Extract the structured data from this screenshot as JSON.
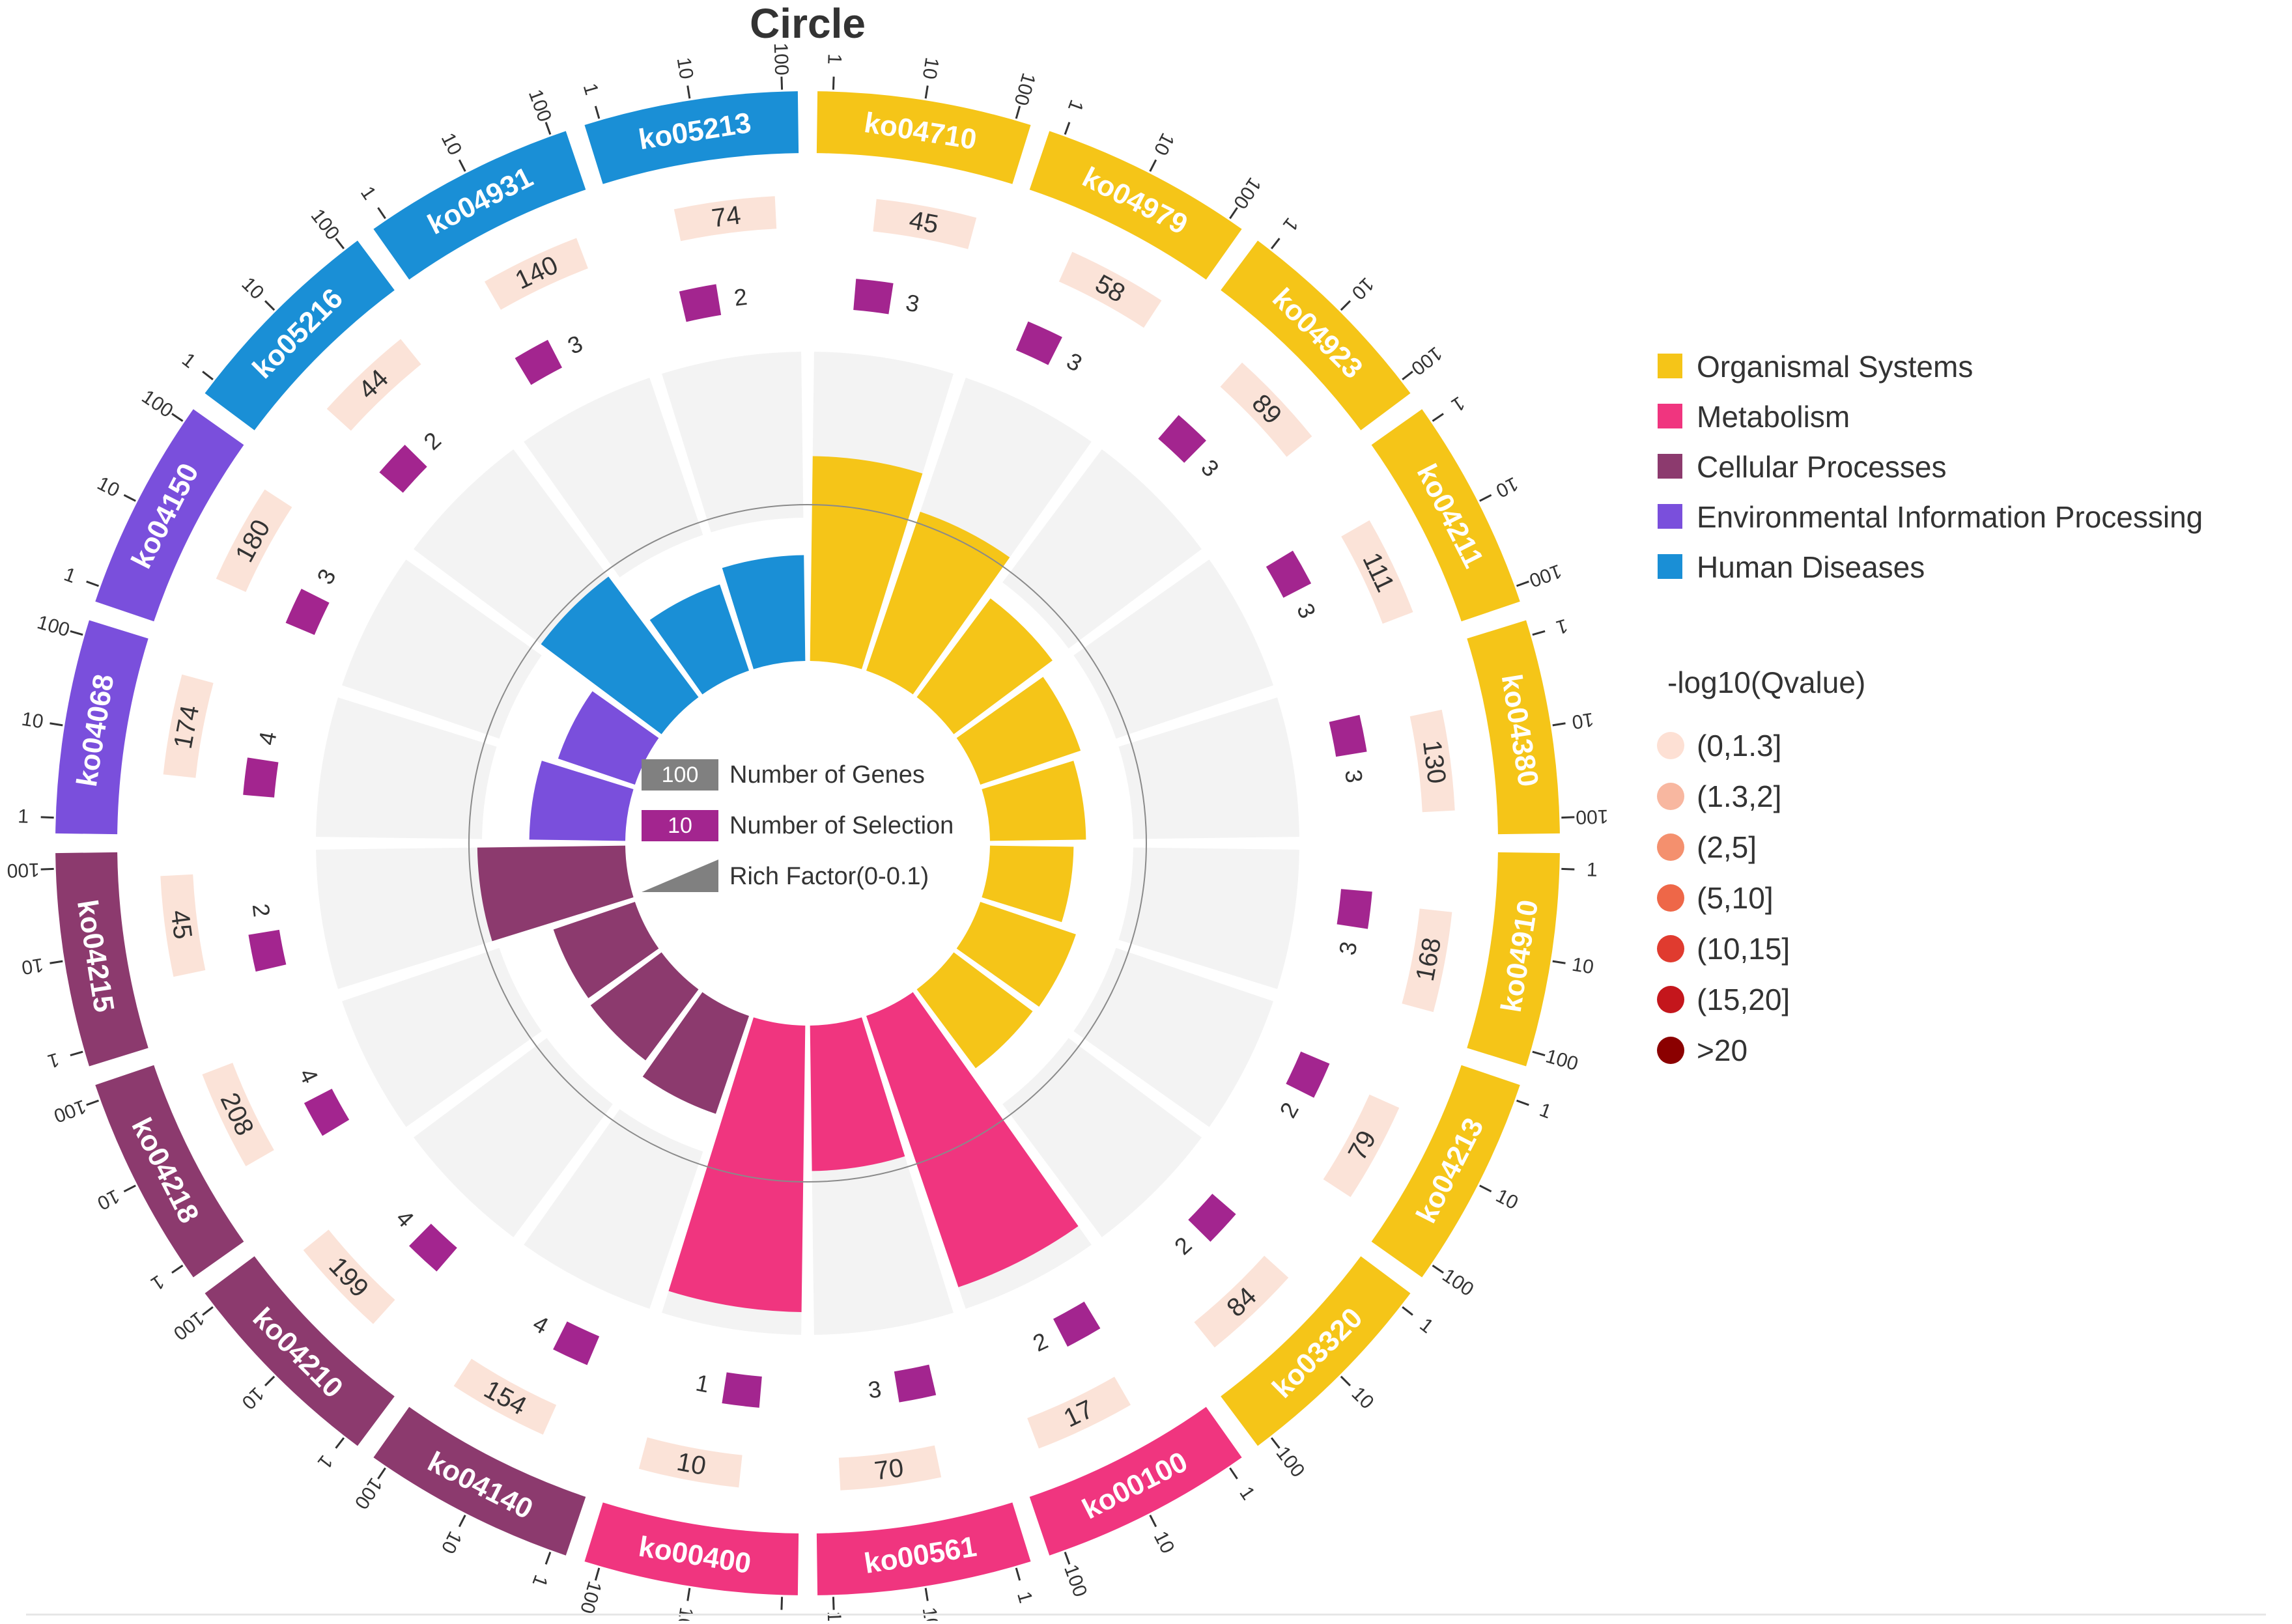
{
  "chart_data": {
    "type": "circos",
    "title": "Circle",
    "categories": [
      {
        "name": "Organismal Systems",
        "color": "#f5c518"
      },
      {
        "name": "Metabolism",
        "color": "#f0357f"
      },
      {
        "name": "Cellular Processes",
        "color": "#8c3a6e"
      },
      {
        "name": "Environmental Information Processing",
        "color": "#7a4fdc"
      },
      {
        "name": "Human Diseases",
        "color": "#1a8fd6"
      }
    ],
    "pathways": [
      {
        "id": "ko04710",
        "category": "Organismal Systems",
        "genes": "45",
        "selection": "3",
        "rich_factor": 0.067
      },
      {
        "id": "ko04979",
        "category": "Organismal Systems",
        "genes": "58",
        "selection": "3",
        "rich_factor": 0.052
      },
      {
        "id": "ko04923",
        "category": "Organismal Systems",
        "genes": "89",
        "selection": "3",
        "rich_factor": 0.034
      },
      {
        "id": "ko04211",
        "category": "Organismal Systems",
        "genes": "111",
        "selection": "3",
        "rich_factor": 0.027
      },
      {
        "id": "ko04380",
        "category": "Organismal Systems",
        "genes": "130",
        "selection": "3",
        "rich_factor": 0.023
      },
      {
        "id": "ko04910",
        "category": "Organismal Systems",
        "genes": "168",
        "selection": "3",
        "rich_factor": 0.018
      },
      {
        "id": "ko04213",
        "category": "Organismal Systems",
        "genes": "79",
        "selection": "2",
        "rich_factor": 0.025
      },
      {
        "id": "ko03320",
        "category": "Organismal Systems",
        "genes": "84",
        "selection": "2",
        "rich_factor": 0.024
      },
      {
        "id": "ko00100",
        "category": "Metabolism",
        "genes": "17",
        "selection": "2",
        "rich_factor": 0.1
      },
      {
        "id": "ko00561",
        "category": "Metabolism",
        "genes": "70",
        "selection": "3",
        "rich_factor": 0.043
      },
      {
        "id": "ko00400",
        "category": "Metabolism",
        "genes": "10",
        "selection": "1",
        "rich_factor": 0.1
      },
      {
        "id": "ko04140",
        "category": "Cellular Processes",
        "genes": "154",
        "selection": "4",
        "rich_factor": 0.026
      },
      {
        "id": "ko04210",
        "category": "Cellular Processes",
        "genes": "199",
        "selection": "4",
        "rich_factor": 0.02
      },
      {
        "id": "ko04218",
        "category": "Cellular Processes",
        "genes": "208",
        "selection": "4",
        "rich_factor": 0.019
      },
      {
        "id": "ko04215",
        "category": "Cellular Processes",
        "genes": "45",
        "selection": "2",
        "rich_factor": 0.044
      },
      {
        "id": "ko04068",
        "category": "Environmental Information Processing",
        "genes": "174",
        "selection": "4",
        "rich_factor": 0.023
      },
      {
        "id": "ko04150",
        "category": "Environmental Information Processing",
        "genes": "180",
        "selection": "3",
        "rich_factor": 0.017
      },
      {
        "id": "ko05216",
        "category": "Human Diseases",
        "genes": "44",
        "selection": "2",
        "rich_factor": 0.045
      },
      {
        "id": "ko04931",
        "category": "Human Diseases",
        "genes": "140",
        "selection": "3",
        "rich_factor": 0.021
      },
      {
        "id": "ko05213",
        "category": "Human Diseases",
        "genes": "74",
        "selection": "2",
        "rich_factor": 0.027
      }
    ],
    "outer_scale_ticks": [
      "1",
      "10",
      "100"
    ],
    "center_legend": [
      {
        "sample": "100",
        "label": "Number of Genes",
        "color": "#808080"
      },
      {
        "sample": "10",
        "label": "Number of Selection",
        "color": "#a3258f"
      },
      {
        "sample": "",
        "label": "Rich Factor(0-0.1)",
        "color": "#808080"
      }
    ],
    "rich_factor_range": [
      0,
      0.1
    ],
    "qvalue_legend": {
      "title": "-log10(Qvalue)",
      "items": [
        {
          "label": "(0,1.3]",
          "color": "#fde0d4"
        },
        {
          "label": "(1.3,2]",
          "color": "#f8b7a0"
        },
        {
          "label": "(2,5]",
          "color": "#f4906e"
        },
        {
          "label": "(5,10]",
          "color": "#ee6748"
        },
        {
          "label": "(10,15]",
          "color": "#e03b2f"
        },
        {
          "label": "(15,20]",
          "color": "#c4161c"
        },
        {
          "label": ">20",
          "color": "#8b0000"
        }
      ]
    },
    "selection_color": "#a3258f",
    "gene_band_color": "#fbe3d8",
    "track_bg_color": "#f3f3f3"
  }
}
